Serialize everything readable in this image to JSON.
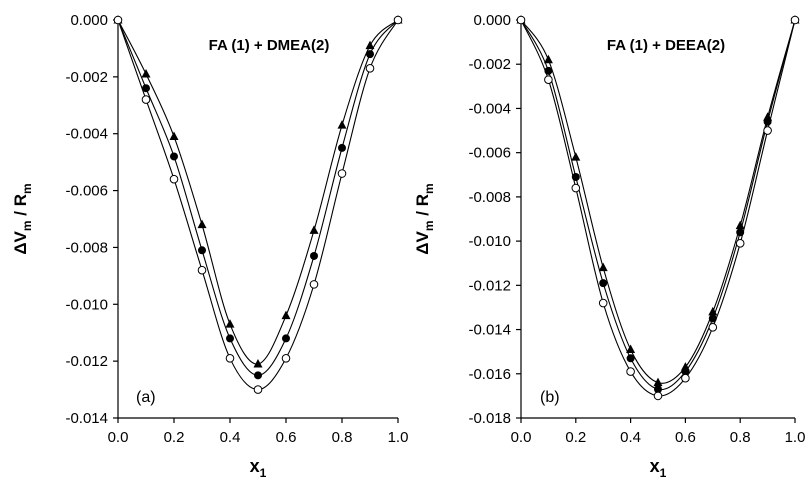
{
  "chart_data": [
    {
      "type": "scatter",
      "panel_label": "(a)",
      "title": "FA (1) + DMEA(2)",
      "xlabel": "x1",
      "xlabel_main": "x",
      "xlabel_sub": "1",
      "ylabel": "ΔVm / Rm",
      "ylabel_parts": [
        "ΔV",
        "m",
        " / R",
        "m"
      ],
      "xlim": [
        0,
        1
      ],
      "ylim": [
        -0.014,
        0
      ],
      "xticks": [
        "0.0",
        "0.2",
        "0.4",
        "0.6",
        "0.8",
        "1.0"
      ],
      "xtick_values": [
        0,
        0.2,
        0.4,
        0.6,
        0.8,
        1.0
      ],
      "yticks": [
        "0.000",
        "-0.002",
        "-0.004",
        "-0.006",
        "-0.008",
        "-0.010",
        "-0.012",
        "-0.014"
      ],
      "ytick_values": [
        0,
        -0.002,
        -0.004,
        -0.006,
        -0.008,
        -0.01,
        -0.012,
        -0.014
      ],
      "grid": false,
      "legend": "none",
      "series": [
        {
          "marker": "triangle-filled",
          "x": [
            0,
            0.1,
            0.2,
            0.3,
            0.4,
            0.5,
            0.6,
            0.7,
            0.8,
            0.9,
            1.0
          ],
          "y": [
            0,
            -0.0019,
            -0.0041,
            -0.0072,
            -0.0107,
            -0.0121,
            -0.0104,
            -0.0074,
            -0.0037,
            -0.0009,
            0
          ]
        },
        {
          "marker": "circle-filled",
          "x": [
            0,
            0.1,
            0.2,
            0.3,
            0.4,
            0.5,
            0.6,
            0.7,
            0.8,
            0.9,
            1.0
          ],
          "y": [
            0,
            -0.0024,
            -0.0048,
            -0.0081,
            -0.0112,
            -0.0125,
            -0.0112,
            -0.0083,
            -0.0045,
            -0.0012,
            0
          ]
        },
        {
          "marker": "circle-open",
          "x": [
            0,
            0.1,
            0.2,
            0.3,
            0.4,
            0.5,
            0.6,
            0.7,
            0.8,
            0.9,
            1.0
          ],
          "y": [
            0,
            -0.0028,
            -0.0056,
            -0.0088,
            -0.0119,
            -0.013,
            -0.0119,
            -0.0093,
            -0.0054,
            -0.0017,
            0
          ]
        }
      ]
    },
    {
      "type": "scatter",
      "panel_label": "(b)",
      "title": "FA (1) + DEEA(2)",
      "xlabel": "x1",
      "xlabel_main": "x",
      "xlabel_sub": "1",
      "ylabel": "ΔVm / Rm",
      "ylabel_parts": [
        "ΔV",
        "m",
        " / R",
        "m"
      ],
      "xlim": [
        0,
        1
      ],
      "ylim": [
        -0.018,
        0
      ],
      "xticks": [
        "0.0",
        "0.2",
        "0.4",
        "0.6",
        "0.8",
        "1.0"
      ],
      "xtick_values": [
        0,
        0.2,
        0.4,
        0.6,
        0.8,
        1.0
      ],
      "yticks": [
        "0.000",
        "-0.002",
        "-0.004",
        "-0.006",
        "-0.008",
        "-0.010",
        "-0.012",
        "-0.014",
        "-0.016",
        "-0.018"
      ],
      "ytick_values": [
        0,
        -0.002,
        -0.004,
        -0.006,
        -0.008,
        -0.01,
        -0.012,
        -0.014,
        -0.016,
        -0.018
      ],
      "grid": false,
      "legend": "none",
      "series": [
        {
          "marker": "triangle-filled",
          "x": [
            0,
            0.1,
            0.2,
            0.3,
            0.4,
            0.5,
            0.6,
            0.7,
            0.8,
            0.9,
            1.0
          ],
          "y": [
            0,
            -0.0018,
            -0.0062,
            -0.0112,
            -0.0149,
            -0.0164,
            -0.0157,
            -0.0132,
            -0.0093,
            -0.0044,
            0
          ]
        },
        {
          "marker": "circle-filled",
          "x": [
            0,
            0.1,
            0.2,
            0.3,
            0.4,
            0.5,
            0.6,
            0.7,
            0.8,
            0.9,
            1.0
          ],
          "y": [
            0,
            -0.0023,
            -0.0071,
            -0.0119,
            -0.0153,
            -0.0167,
            -0.0159,
            -0.0135,
            -0.0096,
            -0.0046,
            0
          ]
        },
        {
          "marker": "circle-open",
          "x": [
            0,
            0.1,
            0.2,
            0.3,
            0.4,
            0.5,
            0.6,
            0.7,
            0.8,
            0.9,
            1.0
          ],
          "y": [
            0,
            -0.0027,
            -0.0076,
            -0.0128,
            -0.0159,
            -0.017,
            -0.0162,
            -0.0139,
            -0.0101,
            -0.005,
            0
          ]
        }
      ]
    }
  ]
}
